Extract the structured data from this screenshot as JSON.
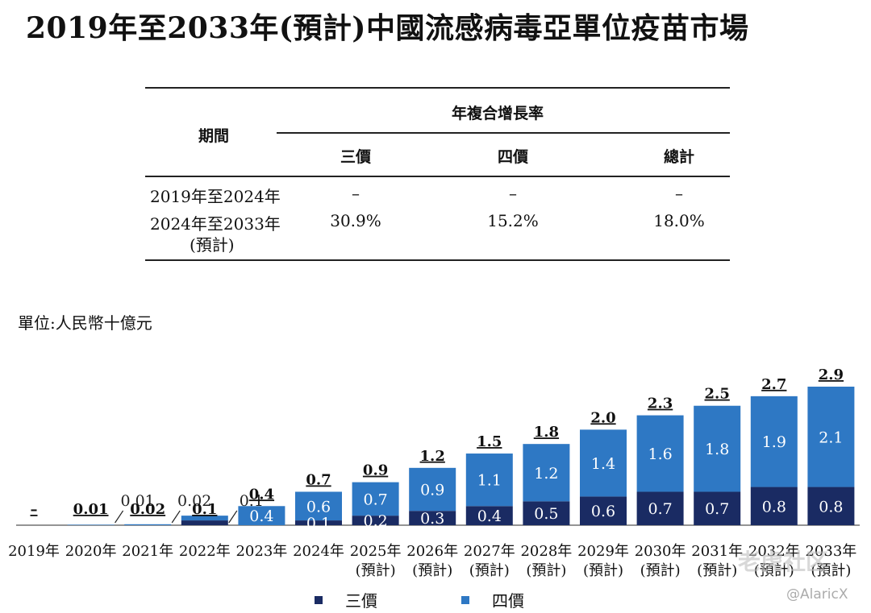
{
  "title": "2019年至2033年(預計)中國流感病毒亞單位疫苗市場",
  "table": {
    "header_period": "期間",
    "header_cagr": "年複合增長率",
    "col_headers": [
      "三價",
      "四價",
      "總計"
    ],
    "rows": [
      {
        "period": "2019年至2024年",
        "period_line2": "",
        "values": [
          "–",
          "–",
          "–"
        ]
      },
      {
        "period": "2024年至2033年",
        "period_line2": "(預計)",
        "values": [
          "30.9%",
          "15.2%",
          "18.0%"
        ]
      }
    ]
  },
  "unit_label": "單位:人民幣十億元",
  "legend": [
    "三價",
    "四價"
  ],
  "colors": {
    "trivalent": "#1a2b63",
    "quadrivalent": "#2e78c4"
  },
  "watermark": {
    "logo": "老虎社区",
    "handle": "@AlaricX"
  },
  "chart_data": {
    "type": "bar",
    "stacked": true,
    "categories": [
      "2019年",
      "2020年",
      "2021年",
      "2022年",
      "2023年",
      "2024年",
      "2025年",
      "2026年",
      "2027年",
      "2028年",
      "2029年",
      "2030年",
      "2031年",
      "2032年",
      "2033年"
    ],
    "category_sub": [
      "",
      "",
      "",
      "",
      "",
      "",
      "(預計)",
      "(預計)",
      "(預計)",
      "(預計)",
      "(預計)",
      "(預計)",
      "(預計)",
      "(預計)",
      "(預計)"
    ],
    "series": [
      {
        "name": "三價",
        "values": [
          0,
          0,
          0,
          0.1,
          0,
          0.1,
          0.2,
          0.3,
          0.4,
          0.5,
          0.6,
          0.7,
          0.7,
          0.8,
          0.8
        ],
        "labels": [
          "",
          "",
          "",
          "",
          "",
          "0.1",
          "0.2",
          "0.3",
          "0.4",
          "0.5",
          "0.6",
          "0.7",
          "0.7",
          "0.8",
          "0.8"
        ]
      },
      {
        "name": "四價",
        "values": [
          0,
          0.01,
          0.02,
          0.1,
          0.4,
          0.6,
          0.7,
          0.9,
          1.1,
          1.2,
          1.4,
          1.6,
          1.8,
          1.9,
          2.1
        ],
        "labels": [
          "",
          "0.01",
          "0.02",
          "0.1",
          "0.4",
          "0.6",
          "0.7",
          "0.9",
          "1.1",
          "1.2",
          "1.4",
          "1.6",
          "1.8",
          "1.9",
          "2.1"
        ]
      }
    ],
    "totals": [
      "–",
      "0.01",
      "0.02",
      "0.1",
      "0.4",
      "0.7",
      "0.9",
      "1.2",
      "1.5",
      "1.8",
      "2.0",
      "2.3",
      "2.5",
      "2.7",
      "2.9"
    ],
    "total_values": [
      0,
      0.01,
      0.02,
      0.1,
      0.4,
      0.7,
      0.9,
      1.2,
      1.5,
      1.8,
      2.0,
      2.3,
      2.5,
      2.7,
      2.9
    ],
    "ylim": [
      0,
      2.9
    ],
    "grid": false,
    "legend_position": "bottom"
  }
}
